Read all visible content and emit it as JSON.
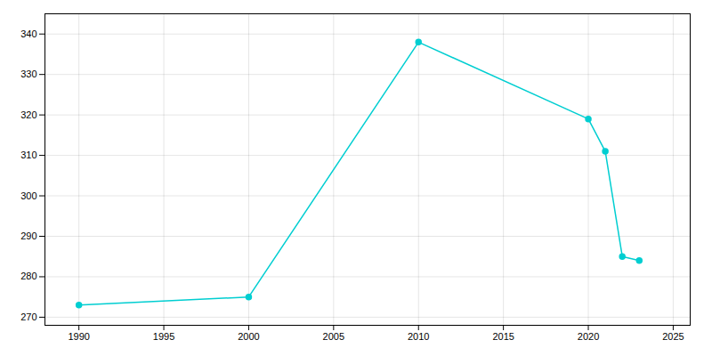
{
  "chart_data": {
    "type": "line",
    "x": [
      1990,
      2000,
      2010,
      2020,
      2021,
      2022,
      2023
    ],
    "values": [
      273,
      275,
      338,
      319,
      311,
      285,
      284
    ],
    "color": "#00CED1",
    "marker": "circle",
    "xlim": [
      1988,
      2026
    ],
    "ylim": [
      268,
      345
    ],
    "xticks": [
      1990,
      1995,
      2000,
      2005,
      2010,
      2015,
      2020,
      2025
    ],
    "yticks": [
      270,
      280,
      290,
      300,
      310,
      320,
      330,
      340
    ],
    "grid": true
  }
}
